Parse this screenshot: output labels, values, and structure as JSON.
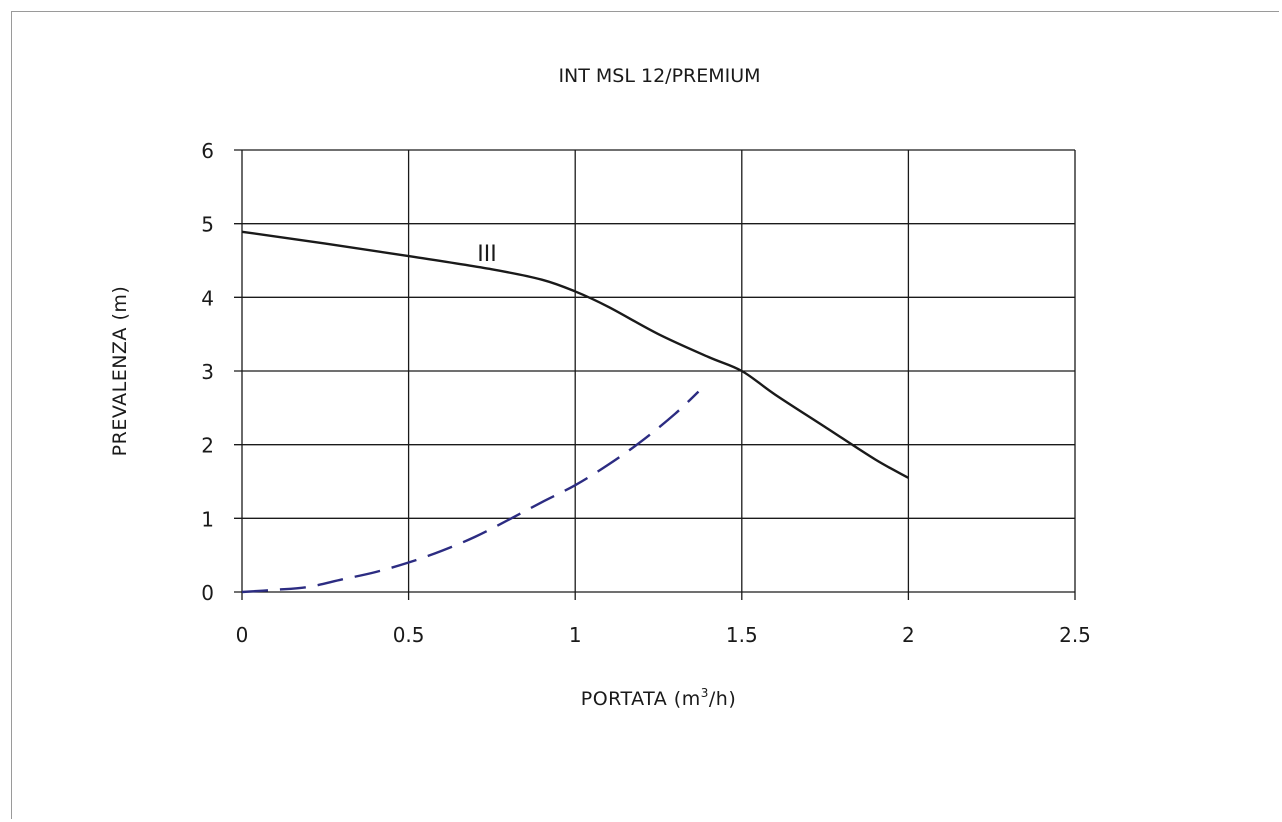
{
  "chart_data": {
    "type": "line",
    "title": "INT MSL 12/PREMIUM",
    "xlabel_main": "PORTATA (m",
    "xlabel_sup": "3",
    "xlabel_tail": "/h)",
    "ylabel": "PREVALENZA (m)",
    "xlim": [
      0,
      2.5
    ],
    "ylim": [
      0,
      6
    ],
    "x_ticks": [
      0,
      0.5,
      1,
      1.5,
      2,
      2.5
    ],
    "x_tick_labels": [
      "0",
      "0.5",
      "1",
      "1.5",
      "2",
      "2.5"
    ],
    "y_ticks": [
      0,
      1,
      2,
      3,
      4,
      5,
      6
    ],
    "y_tick_labels": [
      "0",
      "1",
      "2",
      "3",
      "4",
      "5",
      "6"
    ],
    "grid": true,
    "series": [
      {
        "label": "III",
        "style": "solid",
        "color": "#1a1a1a",
        "x": [
          0,
          0.25,
          0.5,
          0.75,
          0.9,
          1.0,
          1.1,
          1.25,
          1.4,
          1.5,
          1.6,
          1.75,
          1.9,
          2.0
        ],
        "y": [
          4.89,
          4.73,
          4.56,
          4.38,
          4.24,
          4.08,
          3.87,
          3.5,
          3.19,
          3.0,
          2.68,
          2.24,
          1.8,
          1.55
        ]
      },
      {
        "style": "dashed",
        "color": "#2c2c82",
        "x": [
          0,
          0.1,
          0.2,
          0.3,
          0.4,
          0.5,
          0.6,
          0.7,
          0.8,
          0.9,
          1.0,
          1.1,
          1.2,
          1.3,
          1.37
        ],
        "y": [
          0.0,
          0.03,
          0.07,
          0.17,
          0.27,
          0.4,
          0.56,
          0.75,
          0.98,
          1.22,
          1.45,
          1.73,
          2.05,
          2.42,
          2.72
        ]
      }
    ],
    "annotations": [
      {
        "text": "III",
        "x": 0.7,
        "y": 4.45
      }
    ]
  }
}
